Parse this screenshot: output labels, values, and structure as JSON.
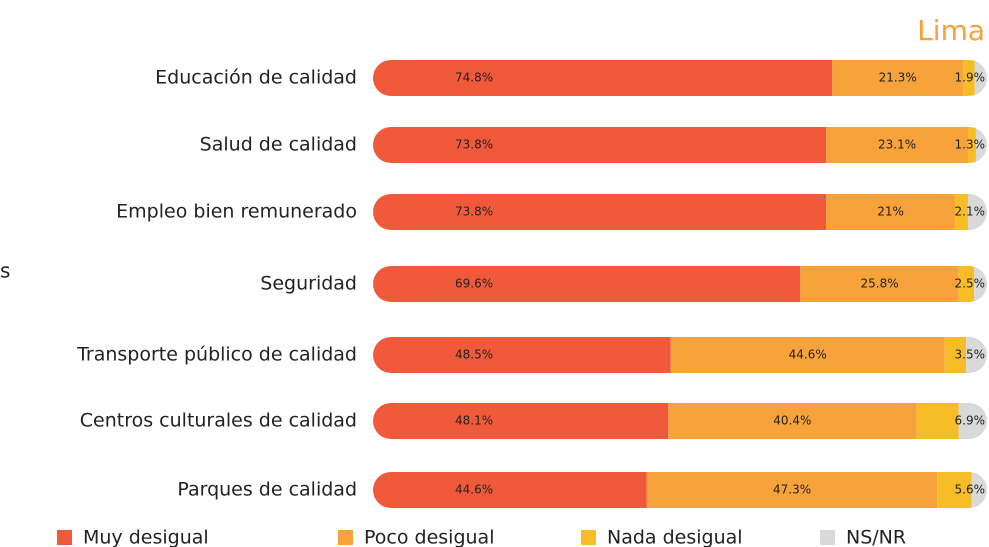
{
  "chart_data": {
    "type": "stacked_barh",
    "title": "Lima",
    "annotation": "s",
    "categories": [
      "Educación de calidad",
      "Salud de calidad",
      "Empleo bien remunerado",
      "Seguridad",
      "Transporte público de calidad",
      "Centros culturales de calidad",
      "Parques de calidad"
    ],
    "xlim": [
      0,
      100
    ],
    "series": [
      {
        "name": "Muy desigual",
        "color": "#f05a3a",
        "values": [
          74.8,
          73.8,
          73.8,
          69.6,
          48.5,
          48.1,
          44.6
        ],
        "value_labels": [
          "74.8%",
          "73.8%",
          "73.8%",
          "69.6%",
          "48.5%",
          "48.1%",
          "44.6%"
        ]
      },
      {
        "name": "Poco desigual",
        "color": "#f7a23a",
        "values": [
          21.3,
          23.1,
          21,
          25.8,
          44.6,
          40.4,
          47.3
        ],
        "value_labels": [
          "21.3%",
          "23.1%",
          "21%",
          "25.8%",
          "44.6%",
          "40.4%",
          "47.3%"
        ]
      },
      {
        "name": "Nada desigual",
        "color": "#f6bd27",
        "values": [
          1.9,
          1.3,
          2.1,
          2.5,
          3.5,
          6.9,
          5.6
        ],
        "value_labels": [
          "1.9%",
          "1.3%",
          "2.1%",
          "2.5%",
          "3.5%",
          "6.9%",
          "5.6%"
        ]
      },
      {
        "name": "NS/NR",
        "color": "#d9d9d9",
        "values": [
          2.0,
          1.8,
          3.1,
          2.1,
          3.4,
          4.6,
          2.5
        ]
      }
    ]
  }
}
